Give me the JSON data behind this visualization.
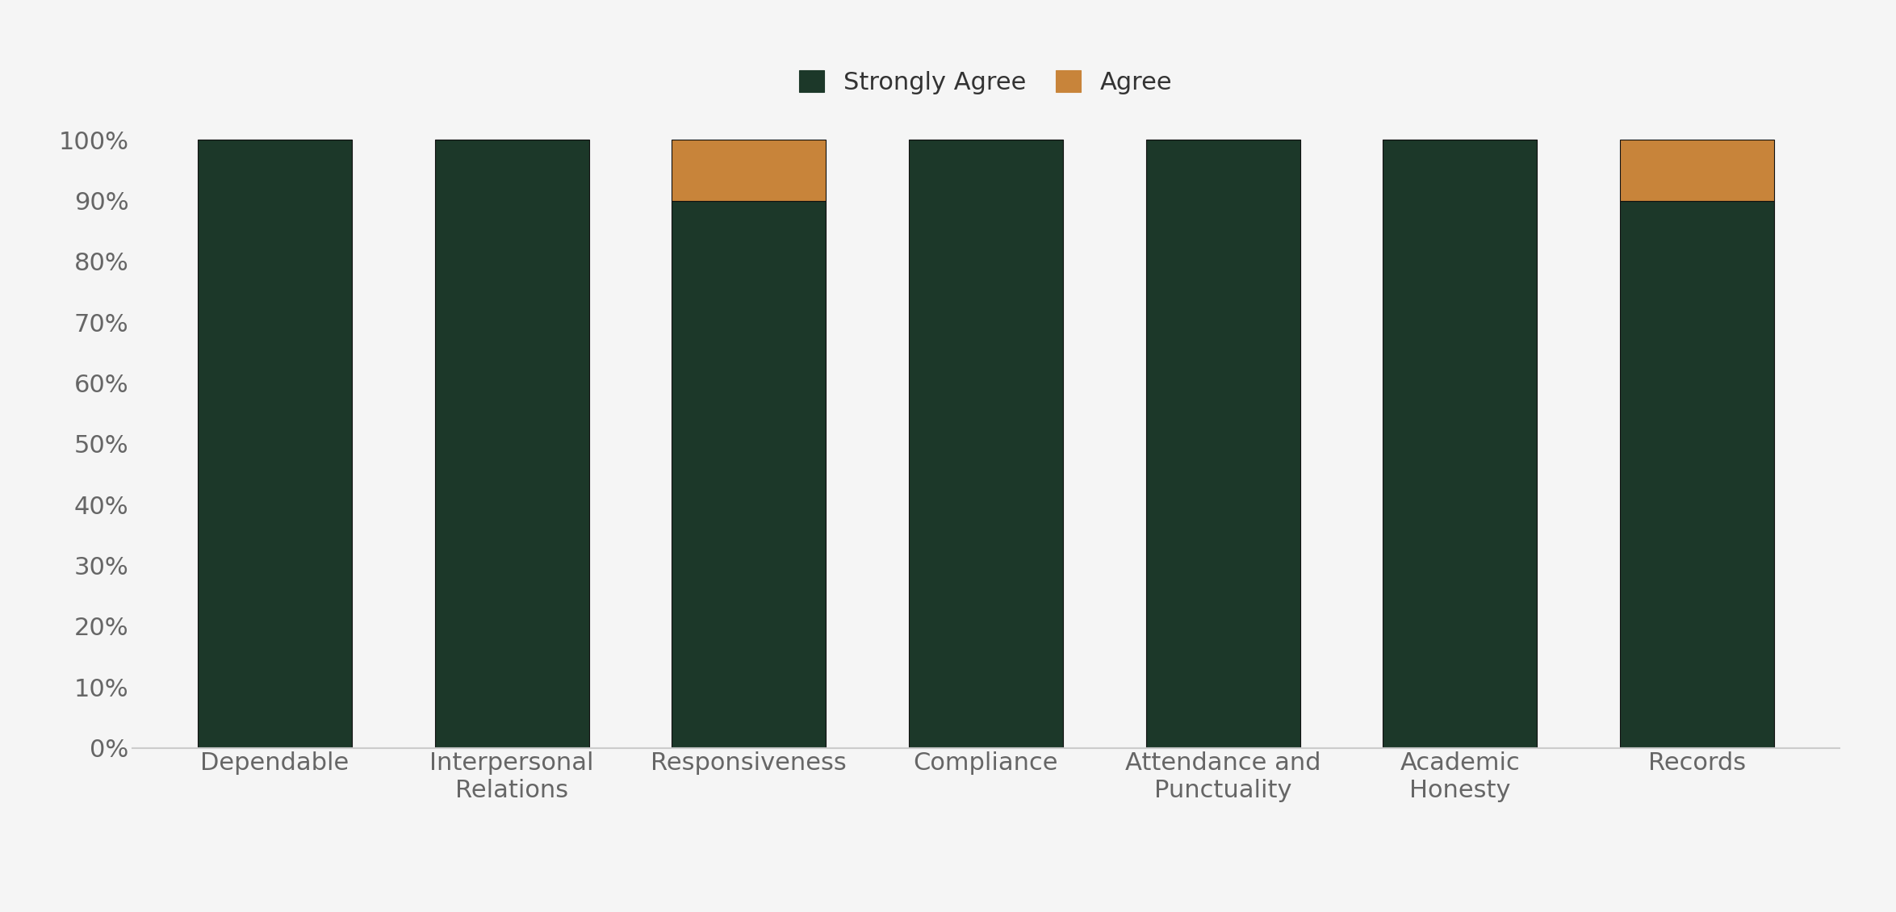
{
  "categories": [
    "Dependable",
    "Interpersonal\nRelations",
    "Responsiveness",
    "Compliance",
    "Attendance and\nPunctuality",
    "Academic\nHonesty",
    "Records"
  ],
  "strongly_agree": [
    100,
    100,
    90,
    100,
    100,
    100,
    90
  ],
  "agree": [
    0,
    0,
    10,
    0,
    0,
    0,
    10
  ],
  "strongly_agree_color": "#1c3829",
  "agree_color": "#c8843a",
  "background_color": "#f5f5f5",
  "bar_width": 0.65,
  "ylim": [
    0,
    105
  ],
  "yticks": [
    0,
    10,
    20,
    30,
    40,
    50,
    60,
    70,
    80,
    90,
    100
  ],
  "ytick_labels": [
    "0%",
    "10%",
    "20%",
    "30%",
    "40%",
    "50%",
    "60%",
    "70%",
    "80%",
    "90%",
    "100%"
  ],
  "legend_labels": [
    "Strongly Agree",
    "Agree"
  ],
  "tick_fontsize": 22,
  "label_fontsize": 22,
  "legend_fontsize": 22,
  "edge_color": "#111111",
  "spine_color": "#cccccc",
  "tick_color": "#666666"
}
